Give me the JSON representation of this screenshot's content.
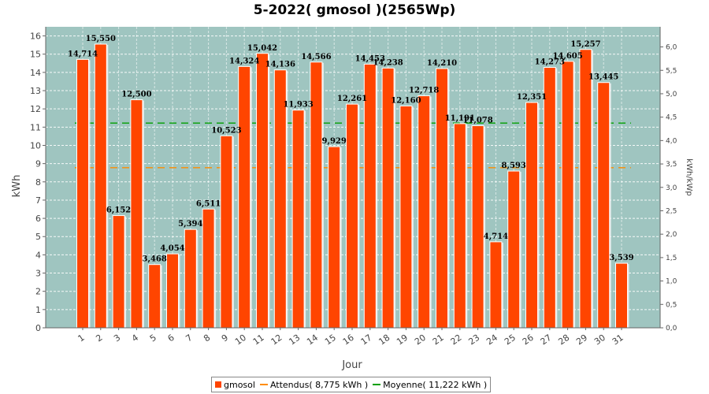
{
  "chart_data": {
    "type": "bar",
    "title": "5-2022( gmosol )(2565Wp)",
    "xlabel": "Jour",
    "ylabel": "kWh",
    "ylabel_right": "kWh/kWp",
    "ylim": [
      0,
      16.5
    ],
    "ylim_right": [
      0,
      6.43
    ],
    "yticks": [
      "0",
      "1",
      "2",
      "3",
      "4",
      "5",
      "6",
      "7",
      "8",
      "9",
      "10",
      "11",
      "12",
      "13",
      "14",
      "15",
      "16"
    ],
    "yticks_right": [
      "0,0",
      "0,5",
      "1,0",
      "1,5",
      "2,0",
      "2,5",
      "3,0",
      "3,5",
      "4,0",
      "4,5",
      "5,0",
      "5,5",
      "6,0"
    ],
    "categories": [
      "1",
      "2",
      "3",
      "4",
      "5",
      "6",
      "7",
      "8",
      "9",
      "10",
      "11",
      "12",
      "13",
      "14",
      "15",
      "16",
      "17",
      "18",
      "19",
      "20",
      "21",
      "22",
      "23",
      "24",
      "25",
      "26",
      "27",
      "28",
      "29",
      "30",
      "31"
    ],
    "series": [
      {
        "name": "gmosol",
        "type": "bar",
        "color": "#ff4500",
        "values": [
          14.714,
          15.55,
          6.152,
          12.5,
          3.468,
          4.054,
          5.394,
          6.511,
          10.523,
          14.324,
          15.042,
          14.136,
          11.933,
          14.566,
          9.929,
          12.261,
          14.453,
          14.238,
          12.16,
          12.718,
          14.21,
          11.191,
          11.078,
          4.714,
          8.593,
          12.351,
          14.273,
          14.605,
          15.257,
          13.445,
          3.539
        ],
        "labels": [
          "14,714",
          "15,550",
          "6,152",
          "12,500",
          "3,468",
          "4,054",
          "5,394",
          "6,511",
          "10,523",
          "14,324",
          "15,042",
          "14,136",
          "11,933",
          "14,566",
          "9,929",
          "12,261",
          "14,453",
          "14,238",
          "12,160",
          "12,718",
          "14,210",
          "11,191",
          "11,078",
          "4,714",
          "8,593",
          "12,351",
          "14,273",
          "14,605",
          "15,257",
          "13,445",
          "3,539"
        ]
      },
      {
        "name": "Attendus( 8,775 kWh )",
        "type": "line",
        "color": "#ff8c00",
        "value": 8.775
      },
      {
        "name": "Moyenne( 11,222 kWh )",
        "type": "line",
        "color": "#00a000",
        "value": 11.222
      }
    ],
    "legend_position": "bottom",
    "grid": true,
    "plot_background": "#9fc5c0"
  },
  "legend": {
    "items": [
      "gmosol",
      "Attendus( 8,775 kWh )",
      "Moyenne( 11,222 kWh )"
    ]
  }
}
